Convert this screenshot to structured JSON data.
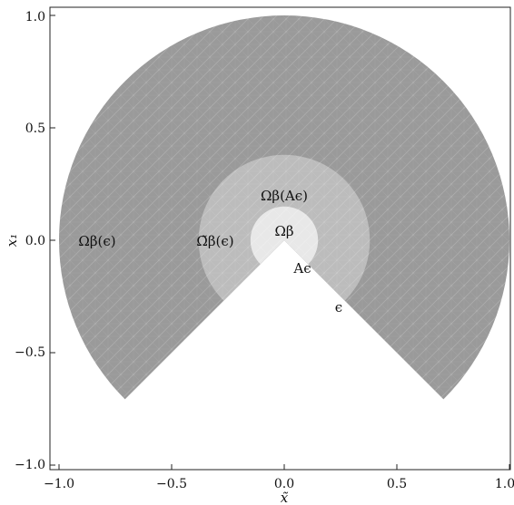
{
  "chart_data": {
    "type": "area",
    "xlabel": "x̃",
    "ylabel": "x₁",
    "xlim": [
      -1.0,
      1.0
    ],
    "ylim": [
      -1.0,
      1.0
    ],
    "x_ticks": [
      "−1.0",
      "−0.5",
      "0.0",
      "0.5",
      "1.0"
    ],
    "x_tick_values": [
      -1.0,
      -0.5,
      0.0,
      0.5,
      1.0
    ],
    "y_ticks": [
      "1.0",
      "0.5",
      "0.0",
      "−0.5",
      "−1.0"
    ],
    "y_tick_values": [
      1.0,
      0.5,
      0.0,
      -0.5,
      -1.0
    ],
    "grid": false,
    "regions": [
      {
        "key": "outer",
        "radius": 1.0,
        "missing_sector_deg": [
          225,
          315
        ],
        "color": "#9a9a9a"
      },
      {
        "key": "middle",
        "radius": 0.38,
        "missing_sector_deg": [
          225,
          315
        ],
        "color": "#bcbcbc"
      },
      {
        "key": "inner",
        "radius": 0.15,
        "missing_sector_deg": [
          225,
          315
        ],
        "color": "#e8e8e8"
      }
    ],
    "annotations": [
      {
        "key": "omega_eps",
        "text": "Ωβ(ϵ)",
        "x": -0.9,
        "y": 0.0
      },
      {
        "key": "omega_tilde",
        "text": "Ω̃β(ϵ)",
        "x": -0.35,
        "y": 0.0
      },
      {
        "key": "omega_aeps",
        "text": "Ωβ(Aϵ)",
        "x": 0.0,
        "y": 0.2
      },
      {
        "key": "omega_beta",
        "text": "Ωβ",
        "x": 0.0,
        "y": 0.04
      },
      {
        "key": "a_eps",
        "text": "Aϵ",
        "x": 0.08,
        "y": -0.12
      },
      {
        "key": "eps",
        "text": "ϵ",
        "x": 0.24,
        "y": -0.3
      }
    ]
  }
}
